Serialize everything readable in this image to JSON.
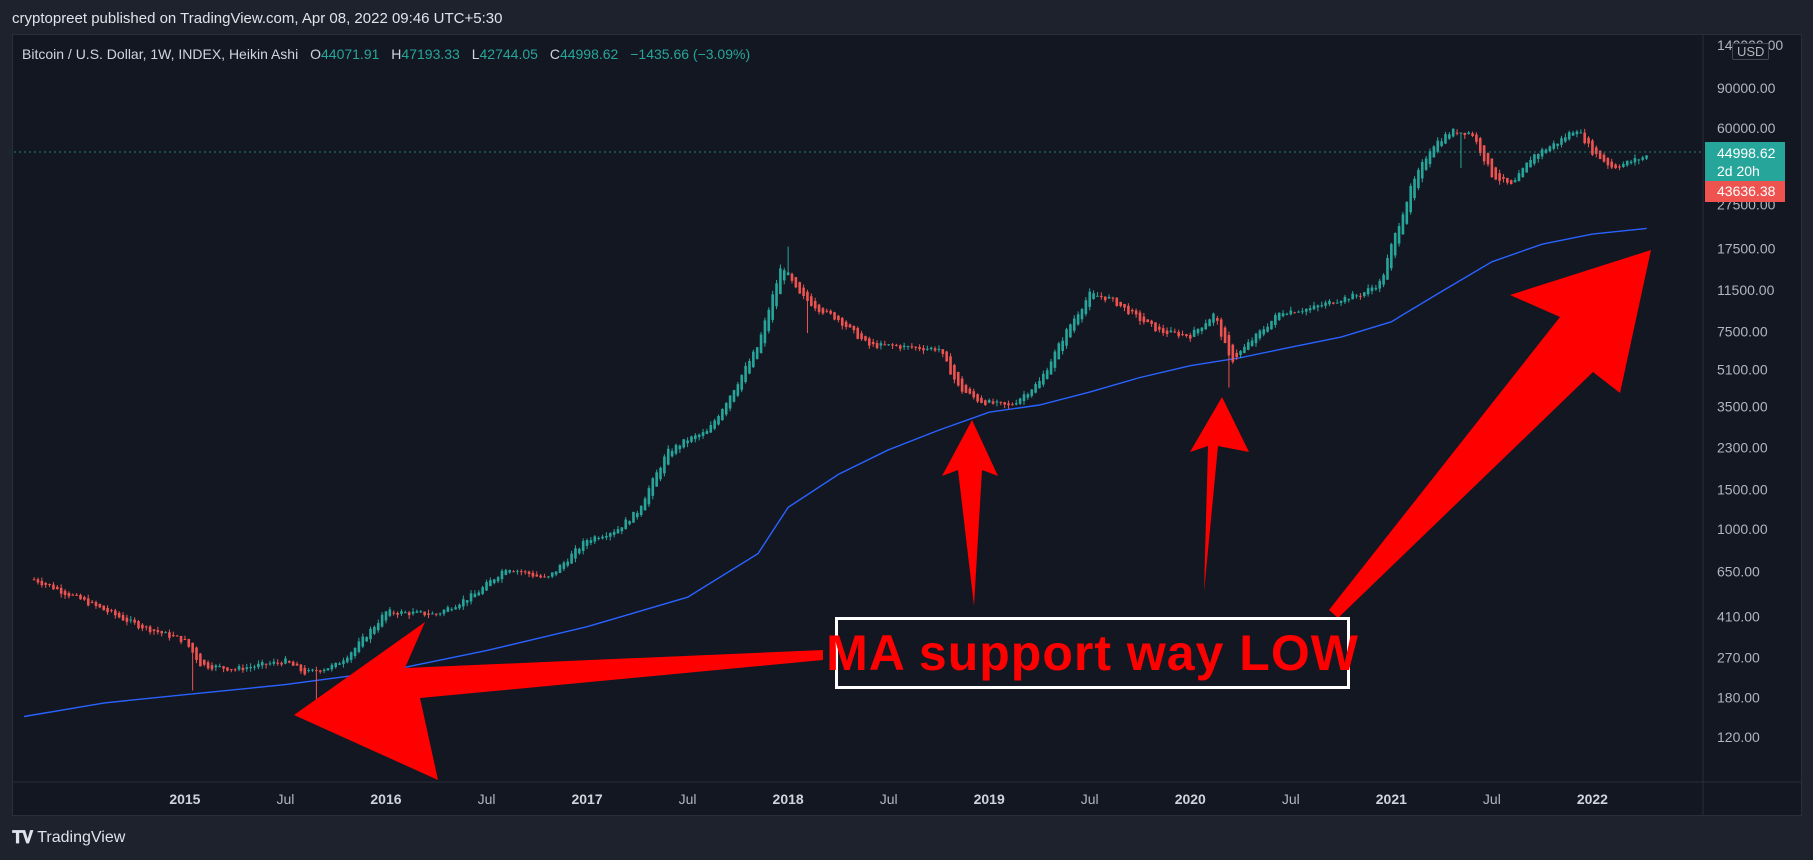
{
  "header": {
    "publisher": "cryptopreet published on TradingView.com, Apr 08, 2022 09:46 UTC+5:30"
  },
  "legend": {
    "symbol": "Bitcoin / U.S. Dollar, 1W, INDEX, Heikin Ashi",
    "open_label": "O",
    "open": "44071.91",
    "high_label": "H",
    "high": "47193.33",
    "low_label": "L",
    "low": "42744.05",
    "close_label": "C",
    "close": "44998.62",
    "change": "−1435.66 (−3.09%)"
  },
  "price_scale": {
    "currency": "USD",
    "current_price": "44998.62",
    "countdown": "2d 20h",
    "other_price": "43636.38"
  },
  "annotation": {
    "callout_text": "MA support way LOW",
    "arrow_color": "#ff0000"
  },
  "footer": {
    "brand": "TradingView"
  },
  "colors": {
    "bull": "#26a69a",
    "bear": "#ef5350",
    "ma_line": "#2962ff",
    "background": "#131722"
  },
  "chart_data": {
    "type": "candlestick",
    "title": "Bitcoin / U.S. Dollar, 1W, INDEX, Heikin Ashi",
    "y_scale": "log",
    "ylim": [
      95,
      150000
    ],
    "y_ticks": [
      "140000.00",
      "90000.00",
      "60000.00",
      "27500.00",
      "17500.00",
      "11500.00",
      "7500.00",
      "5100.00",
      "3500.00",
      "2300.00",
      "1500.00",
      "1000.00",
      "650.00",
      "410.00",
      "270.00",
      "180.00",
      "120.00"
    ],
    "x_ticks": [
      "2015",
      "Jul",
      "2016",
      "Jul",
      "2017",
      "Jul",
      "2018",
      "Jul",
      "2019",
      "Jul",
      "2020",
      "Jul",
      "2021",
      "Jul",
      "2022"
    ],
    "series": [
      {
        "kind": "heikin-ashi-weekly-closes",
        "t": [
          2014.25,
          2014.5,
          2014.75,
          2015.0,
          2015.08,
          2015.25,
          2015.5,
          2015.6,
          2015.75,
          2015.85,
          2016.0,
          2016.25,
          2016.45,
          2016.6,
          2016.8,
          2017.0,
          2017.15,
          2017.25,
          2017.4,
          2017.5,
          2017.6,
          2017.75,
          2017.85,
          2017.97,
          2018.05,
          2018.15,
          2018.25,
          2018.4,
          2018.5,
          2018.6,
          2018.75,
          2018.85,
          2018.95,
          2019.1,
          2019.25,
          2019.4,
          2019.5,
          2019.6,
          2019.75,
          2019.85,
          2020.0,
          2020.12,
          2020.2,
          2020.3,
          2020.45,
          2020.6,
          2020.75,
          2020.85,
          2020.95,
          2021.0,
          2021.1,
          2021.2,
          2021.3,
          2021.4,
          2021.5,
          2021.6,
          2021.7,
          2021.83,
          2021.92,
          2022.0,
          2022.1,
          2022.27
        ],
        "close": [
          600,
          480,
          380,
          320,
          250,
          240,
          260,
          230,
          250,
          300,
          430,
          420,
          520,
          680,
          600,
          900,
          1000,
          1200,
          2200,
          2500,
          2700,
          4500,
          6500,
          15000,
          11000,
          9500,
          8500,
          6500,
          6500,
          6400,
          6300,
          4200,
          3700,
          3500,
          4500,
          8000,
          11000,
          10500,
          8500,
          7500,
          7200,
          9000,
          5500,
          6800,
          9200,
          9500,
          10500,
          11000,
          12500,
          18000,
          33000,
          50000,
          58000,
          57000,
          37000,
          33000,
          45000,
          52000,
          60000,
          47000,
          40000,
          44998.62
        ]
      },
      {
        "name": "",
        "kind": "moving-average",
        "t": [
          2014.2,
          2014.6,
          2015.0,
          2015.5,
          2016.0,
          2016.5,
          2017.0,
          2017.5,
          2017.85,
          2018.0,
          2018.25,
          2018.5,
          2018.75,
          2019.0,
          2019.25,
          2019.5,
          2019.75,
          2020.0,
          2020.25,
          2020.5,
          2020.75,
          2021.0,
          2021.25,
          2021.5,
          2021.75,
          2022.0,
          2022.27
        ],
        "values": [
          148,
          170,
          185,
          205,
          235,
          290,
          370,
          500,
          780,
          1250,
          1750,
          2250,
          2750,
          3300,
          3550,
          4050,
          4700,
          5300,
          5750,
          6400,
          7100,
          8300,
          11300,
          15300,
          18300,
          20300,
          21500
        ]
      }
    ]
  }
}
